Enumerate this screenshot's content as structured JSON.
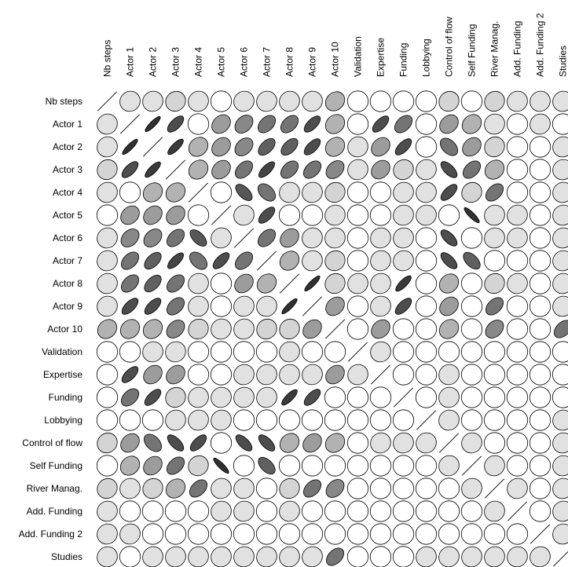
{
  "chart_data": {
    "type": "heatmap",
    "subtype": "correlation ellipse matrix",
    "title": "",
    "variables": [
      "Nb steps",
      "Actor 1",
      "Actor 2",
      "Actor 3",
      "Actor 4",
      "Actor 5",
      "Actor 6",
      "Actor 7",
      "Actor 8",
      "Actor 9",
      "Actor 10",
      "Validation",
      "Expertise",
      "Funding",
      "Lobbying",
      "Control of flow",
      "Self Funding",
      "River Manag.",
      "Add. Funding",
      "Add. Funding 2",
      "Studies"
    ],
    "value_range": [
      -1,
      1
    ],
    "encoding": "ellipse eccentricity, tilt and grey shade show correlation strength and sign; diagonal shown as a line",
    "colors": {
      "ellipse_stroke": "#000000",
      "background": "#ffffff"
    },
    "matrix": [
      [
        1,
        0.1,
        0.1,
        0.15,
        0.1,
        0,
        0.1,
        0.1,
        0.1,
        0.1,
        0.3,
        0,
        0,
        0,
        0,
        0.15,
        0,
        0.15,
        0.1,
        0.1,
        0.1
      ],
      [
        0.1,
        1,
        0.95,
        0.8,
        0,
        0.4,
        0.5,
        0.6,
        0.6,
        0.8,
        0.3,
        0,
        0.8,
        0.6,
        0,
        0.4,
        0.3,
        0.1,
        0,
        0.1,
        0
      ],
      [
        0.1,
        0.95,
        1,
        0.9,
        0.3,
        0.4,
        0.5,
        0.7,
        0.7,
        0.8,
        0.3,
        0.1,
        0.4,
        0.8,
        0,
        -0.6,
        0.4,
        0.15,
        0,
        0,
        0.1
      ],
      [
        0.15,
        0.8,
        0.9,
        1,
        0.3,
        0.4,
        0.6,
        0.85,
        0.6,
        0.6,
        0.5,
        0.1,
        0.4,
        0.15,
        0.1,
        -0.8,
        0.6,
        0.3,
        0,
        0,
        0.1
      ],
      [
        0.1,
        0,
        0.3,
        0.3,
        1,
        0,
        -0.75,
        -0.6,
        0.1,
        0.1,
        0.15,
        0,
        0,
        0.1,
        0.1,
        0.8,
        0.15,
        0.6,
        0,
        0,
        0.1
      ],
      [
        0,
        0.4,
        0.4,
        0.4,
        0,
        1,
        0.1,
        0.8,
        0,
        0,
        0.1,
        0,
        0,
        0.1,
        0.1,
        0,
        -0.95,
        0.1,
        0.1,
        0,
        0.1
      ],
      [
        0.1,
        0.5,
        0.5,
        0.6,
        -0.75,
        0.1,
        1,
        0.6,
        0.4,
        0.1,
        0.1,
        0,
        0.1,
        0.1,
        0,
        -0.8,
        0,
        0.1,
        0.1,
        0,
        0.1
      ],
      [
        0.1,
        0.6,
        0.7,
        0.85,
        -0.6,
        0.8,
        0.6,
        1,
        0.3,
        0.1,
        0.15,
        0,
        0.1,
        0.1,
        0,
        -0.8,
        -0.7,
        0,
        0,
        0,
        0.1
      ],
      [
        0.1,
        0.6,
        0.7,
        0.6,
        0.1,
        0,
        0.4,
        0.3,
        1,
        0.95,
        0.15,
        0.1,
        0.1,
        0.9,
        0,
        0.3,
        0,
        0.15,
        0.1,
        0,
        0.1
      ],
      [
        0.1,
        0.8,
        0.8,
        0.6,
        0.1,
        0,
        0.1,
        0.1,
        0.95,
        1,
        0.4,
        0,
        0.1,
        0.8,
        0,
        0.4,
        0,
        0.6,
        0,
        0,
        0.1
      ],
      [
        0.3,
        0.3,
        0.3,
        0.5,
        0.15,
        0.1,
        0.1,
        0.15,
        0.15,
        0.4,
        1,
        0,
        0.4,
        0,
        0,
        0.3,
        0,
        0.5,
        0,
        0,
        0.6
      ],
      [
        0,
        0,
        0.1,
        0.1,
        0,
        0,
        0,
        0,
        0.1,
        0,
        0,
        1,
        0.1,
        0,
        0,
        0,
        0,
        0,
        0,
        0,
        0
      ],
      [
        0,
        0.8,
        0.4,
        0.4,
        0,
        0,
        0.1,
        0.1,
        0.1,
        0.1,
        0.4,
        0.1,
        1,
        0,
        0,
        0.1,
        0,
        0,
        0,
        0,
        0
      ],
      [
        0,
        0.6,
        0.8,
        0.15,
        0.1,
        0.1,
        0.1,
        0.1,
        0.9,
        0.8,
        0,
        0,
        0,
        1,
        0,
        0.1,
        0,
        0,
        0,
        0,
        0
      ],
      [
        0,
        0,
        0,
        0.1,
        0.1,
        0.1,
        0,
        0,
        0,
        0,
        0,
        0,
        0,
        0,
        1,
        0.1,
        0,
        0,
        0,
        0,
        0.1
      ],
      [
        0.15,
        0.4,
        -0.6,
        -0.8,
        0.8,
        0,
        -0.8,
        -0.8,
        0.3,
        0.4,
        0.3,
        0,
        0.1,
        0.1,
        0.1,
        1,
        0.1,
        0,
        0,
        0,
        0.1
      ],
      [
        0,
        0.3,
        0.4,
        0.6,
        0.15,
        -0.95,
        0,
        -0.7,
        0,
        0,
        0,
        0,
        0,
        0,
        0,
        0.1,
        1,
        0.1,
        0,
        0,
        0.1
      ],
      [
        0.15,
        0.1,
        0.15,
        0.3,
        0.6,
        0.1,
        0.1,
        0,
        0.15,
        0.6,
        0.5,
        0,
        0,
        0,
        0,
        0,
        0.1,
        1,
        0.1,
        0,
        0.1
      ],
      [
        0.1,
        0,
        0,
        0,
        0,
        0.1,
        0.1,
        0,
        0.1,
        0,
        0,
        0,
        0,
        0,
        0,
        0,
        0,
        0.1,
        1,
        0,
        0.1
      ],
      [
        0.1,
        0.1,
        0,
        0,
        0,
        0,
        0,
        0,
        0,
        0,
        0,
        0,
        0,
        0,
        0,
        0,
        0,
        0,
        0,
        1,
        0.1
      ],
      [
        0.1,
        0,
        0.1,
        0.1,
        0.1,
        0.1,
        0.1,
        0.1,
        0.1,
        0.1,
        0.6,
        0,
        0,
        0,
        0.1,
        0.1,
        0.1,
        0.1,
        0.1,
        0.1,
        1
      ]
    ]
  }
}
